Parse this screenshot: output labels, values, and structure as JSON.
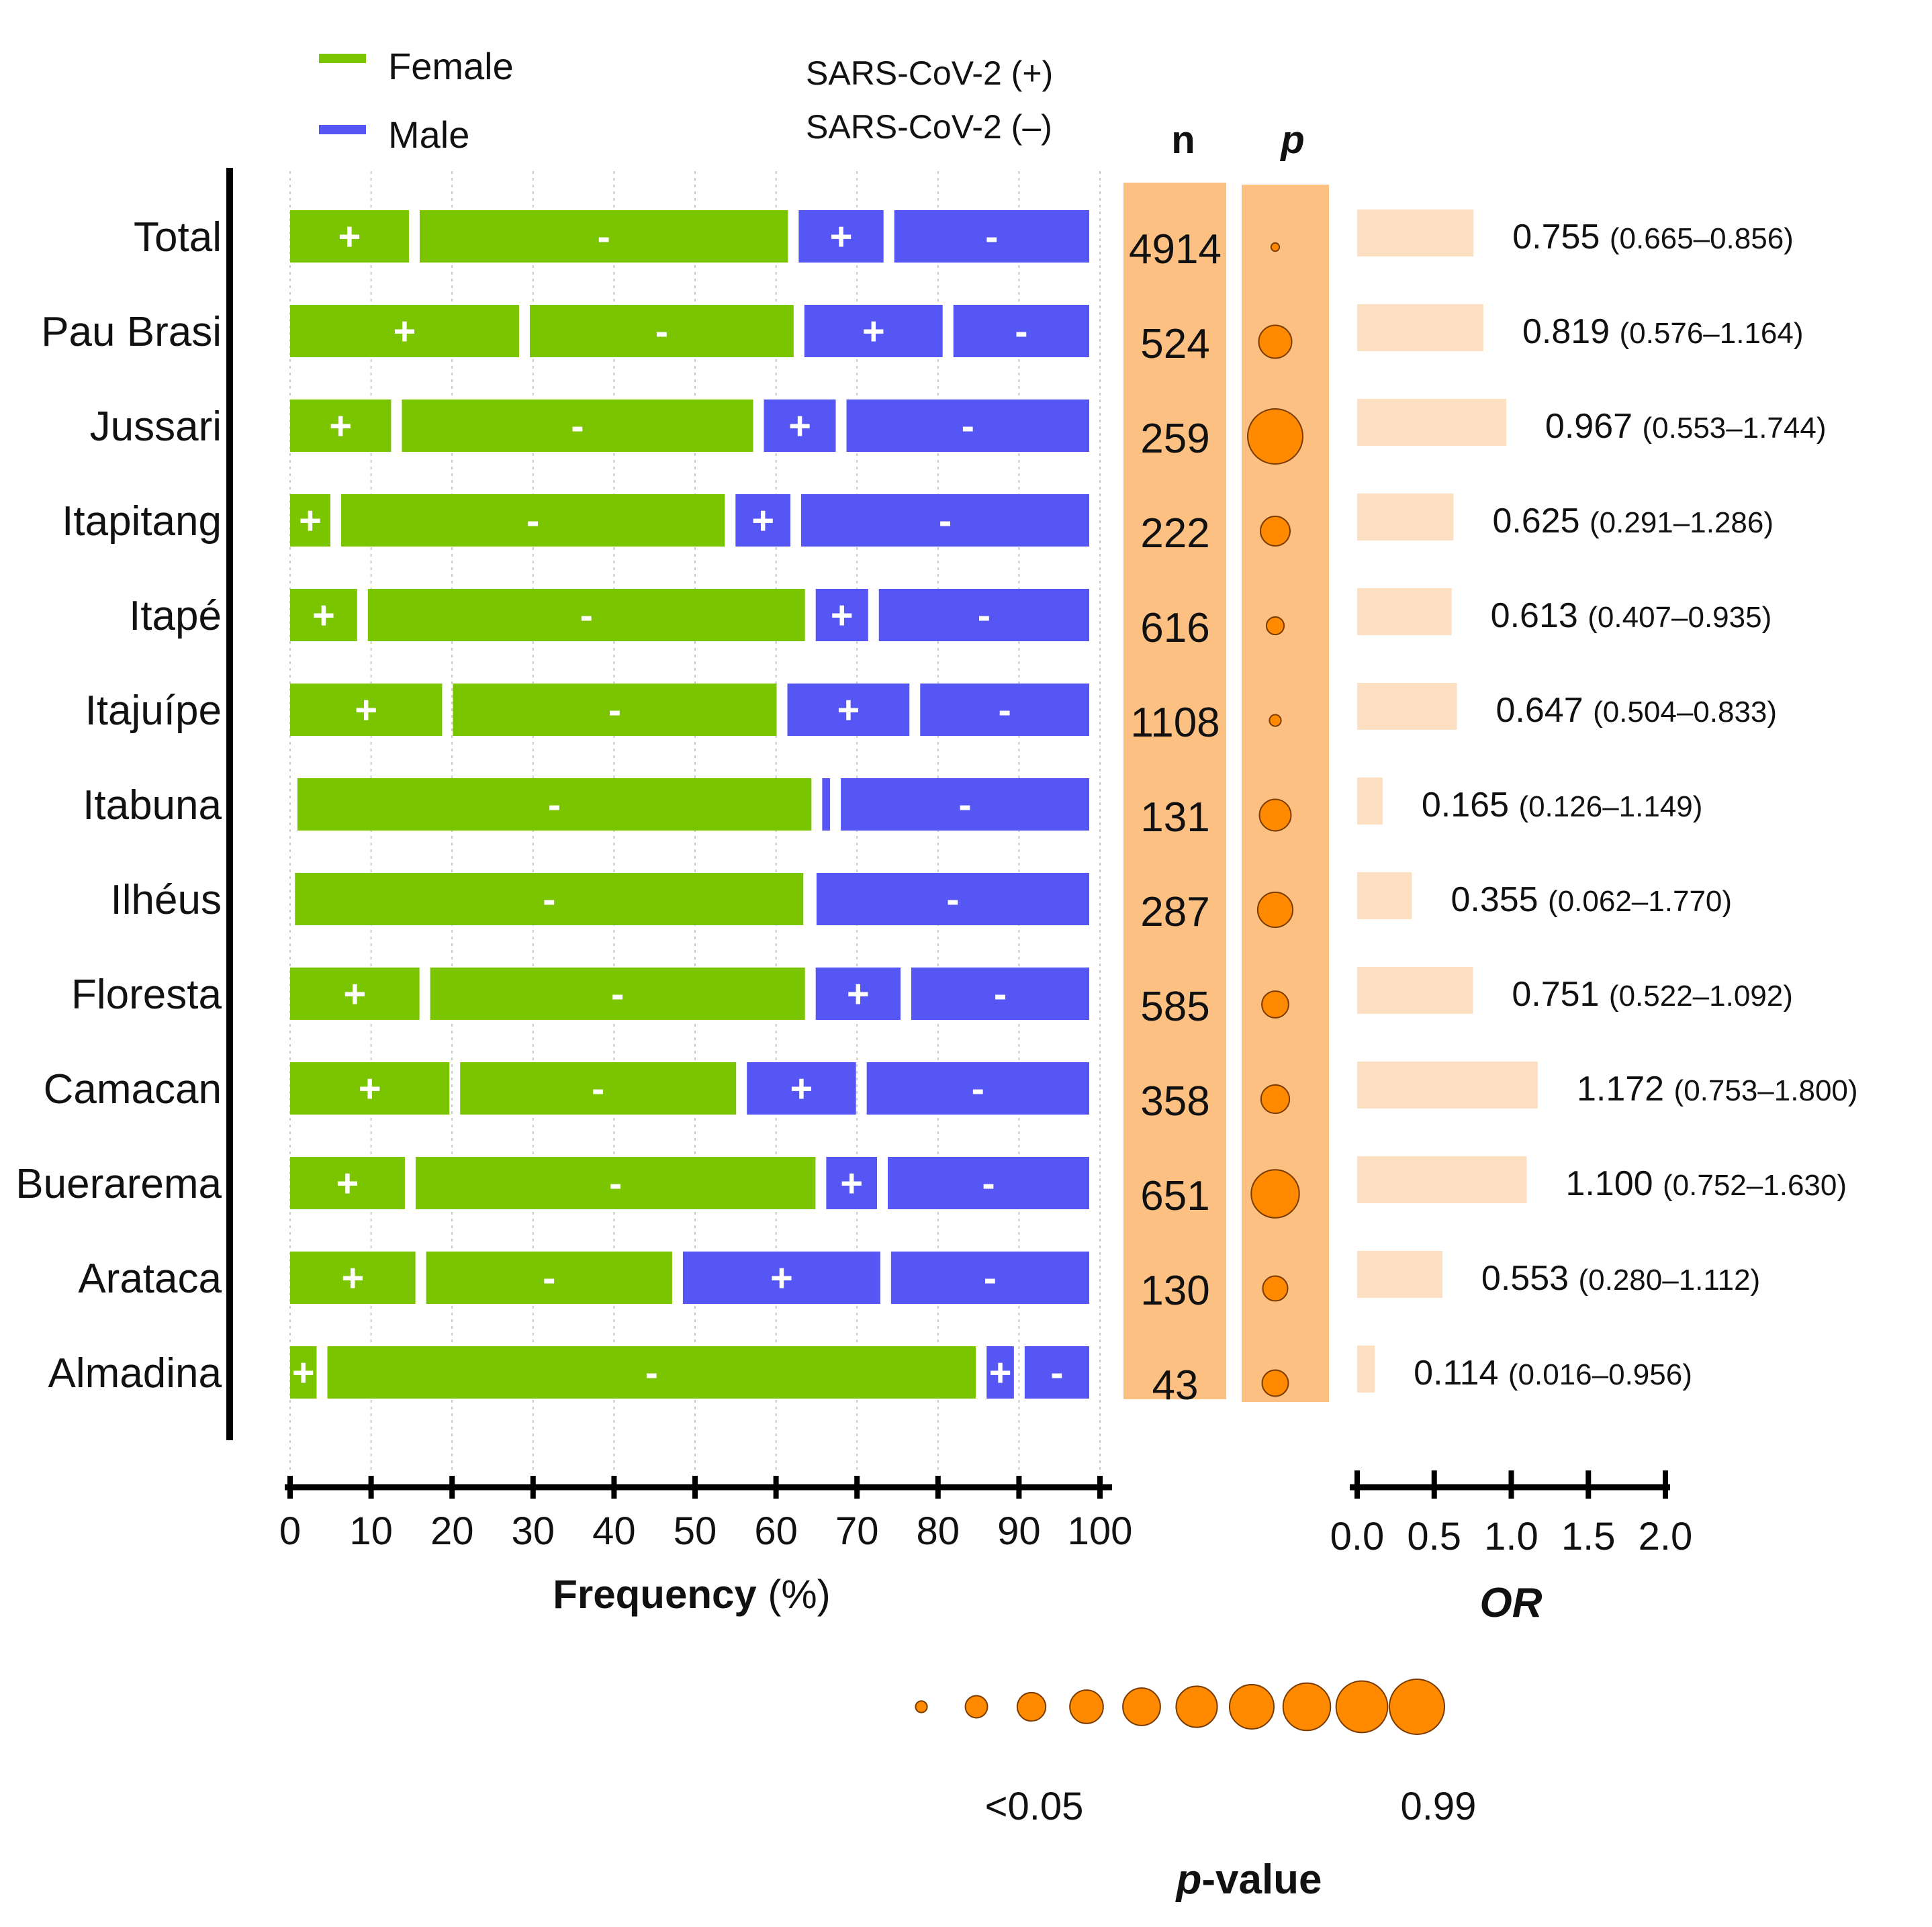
{
  "chart_data": {
    "type": "bar",
    "subtype": "stacked-horizontal-percent",
    "legend": {
      "sex": [
        {
          "name": "Female",
          "color": "#7bc400"
        },
        {
          "name": "Male",
          "color": "#5656f5"
        }
      ],
      "status": [
        "SARS-CoV-2 (+)",
        "SARS-CoV-2 (–)"
      ],
      "plus_sign": "+",
      "minus_sign": "-"
    },
    "xlabel_bold": "Frequency",
    "xlabel_rest": " (%)",
    "xlim": [
      0,
      100
    ],
    "xticks": [
      "0",
      "10",
      "20",
      "30",
      "40",
      "50",
      "60",
      "70",
      "80",
      "90",
      "100"
    ],
    "n_header": "n",
    "p_header": "p",
    "or_label": "OR",
    "or_lim": [
      0,
      2
    ],
    "or_ticks": [
      "0.0",
      "0.5",
      "1.0",
      "1.5",
      "2.0"
    ],
    "pvalue_legend": {
      "label_low": "<0.05",
      "label_high": "0.99",
      "title_italic": "p",
      "title_rest": "-value",
      "levels": [
        0.01,
        0.1,
        0.2,
        0.3,
        0.4,
        0.5,
        0.6,
        0.7,
        0.85,
        0.99
      ]
    },
    "rows": [
      {
        "label": "Total",
        "fpos": 16.0,
        "fneg": 46.8,
        "mpos": 11.8,
        "mneg": 25.4,
        "n": "4914",
        "p": 0.001,
        "or": 0.755,
        "or_text": "0.755",
        "ci_text": "(0.665–0.856)"
      },
      {
        "label": "Pau Brasi",
        "fpos": 29.6,
        "fneg": 33.9,
        "mpos": 18.4,
        "mneg": 18.1,
        "n": "524",
        "p": 0.29,
        "or": 0.819,
        "or_text": "0.819",
        "ci_text": "(0.576–1.164)"
      },
      {
        "label": "Jussari",
        "fpos": 13.8,
        "fneg": 44.7,
        "mpos": 10.2,
        "mneg": 31.3,
        "n": "259",
        "p": 0.99,
        "or": 0.967,
        "or_text": "0.967",
        "ci_text": "(0.553–1.744)"
      },
      {
        "label": "Itapitang",
        "fpos": 6.3,
        "fneg": 48.7,
        "mpos": 8.1,
        "mneg": 36.9,
        "n": "222",
        "p": 0.22,
        "or": 0.625,
        "or_text": "0.625",
        "ci_text": "(0.291–1.286)"
      },
      {
        "label": "Itapé",
        "fpos": 9.6,
        "fneg": 55.3,
        "mpos": 7.8,
        "mneg": 27.3,
        "n": "616",
        "p": 0.05,
        "or": 0.613,
        "or_text": "0.613",
        "ci_text": "(0.407–0.935)"
      },
      {
        "label": "Itajuípe",
        "fpos": 20.1,
        "fneg": 41.3,
        "mpos": 16.4,
        "mneg": 22.2,
        "n": "1108",
        "p": 0.01,
        "or": 0.647,
        "or_text": "0.647",
        "ci_text": "(0.504–0.833)"
      },
      {
        "label": "Itabuna",
        "fpos": 0.9,
        "fneg": 64.8,
        "mpos": 2.3,
        "mneg": 32.0,
        "n": "131",
        "p": 0.26,
        "or": 0.165,
        "or_text": "0.165",
        "ci_text": "(0.126–1.149)"
      },
      {
        "label": "Ilhéus",
        "fpos": 0.6,
        "fneg": 64.1,
        "mpos": 0.3,
        "mneg": 35.0,
        "n": "287",
        "p": 0.34,
        "or": 0.355,
        "or_text": "0.355",
        "ci_text": "(0.062–1.770)"
      },
      {
        "label": "Floresta",
        "fpos": 17.3,
        "fneg": 47.6,
        "mpos": 11.8,
        "mneg": 23.3,
        "n": "585",
        "p": 0.17,
        "or": 0.751,
        "or_text": "0.751",
        "ci_text": "(0.522–1.092)"
      },
      {
        "label": "Camacan",
        "fpos": 21.0,
        "fneg": 35.4,
        "mpos": 14.8,
        "mneg": 28.8,
        "n": "358",
        "p": 0.2,
        "or": 1.172,
        "or_text": "1.172",
        "ci_text": "(0.753–1.800)"
      },
      {
        "label": "Buerarema",
        "fpos": 15.5,
        "fneg": 50.7,
        "mpos": 7.6,
        "mneg": 26.2,
        "n": "651",
        "p": 0.72,
        "or": 1.1,
        "or_text": "1.100",
        "ci_text": "(0.752–1.630)"
      },
      {
        "label": "Arataca",
        "fpos": 16.8,
        "fneg": 31.7,
        "mpos": 25.7,
        "mneg": 25.8,
        "n": "130",
        "p": 0.14,
        "or": 0.553,
        "or_text": "0.553",
        "ci_text": "(0.280–1.112)"
      },
      {
        "label": "Almadina",
        "fpos": 4.6,
        "fneg": 81.4,
        "mpos": 4.7,
        "mneg": 9.3,
        "n": "43",
        "p": 0.16,
        "or": 0.114,
        "or_text": "0.114",
        "ci_text": "(0.016–0.956)"
      }
    ],
    "colors": {
      "female": "#7bc400",
      "male": "#5656f5",
      "panel": "#fbc082",
      "bubble": "#ff8a00",
      "or_bar": "#fde0c2"
    }
  }
}
